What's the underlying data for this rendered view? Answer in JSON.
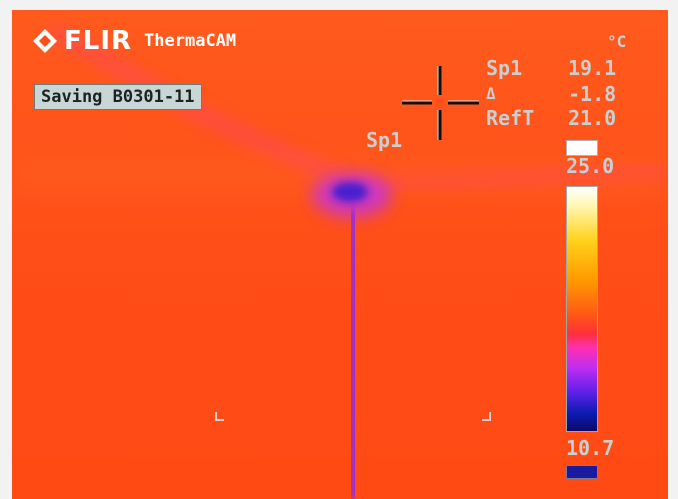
{
  "camera": {
    "brand": "FLIR",
    "product": "ThermaCAM",
    "status": "Saving B0301-11"
  },
  "measurements": {
    "unit": "°C",
    "spot_label": "Sp1",
    "spot_value": "19.1",
    "delta_label": "Δ",
    "delta_value": "-1.8",
    "ref_label": "RefT",
    "ref_value": "21.0",
    "crosshair_label": "Sp1"
  },
  "scale": {
    "max": "25.0",
    "min": "10.7"
  },
  "icons": {
    "logo": "flir-diamond-icon",
    "spot": "crosshair-icon"
  },
  "colors": {
    "background": "#ff4d17",
    "cold": "#3a1fd0",
    "hot": "#ffffff",
    "overlay_text": "#c8d0d0"
  }
}
